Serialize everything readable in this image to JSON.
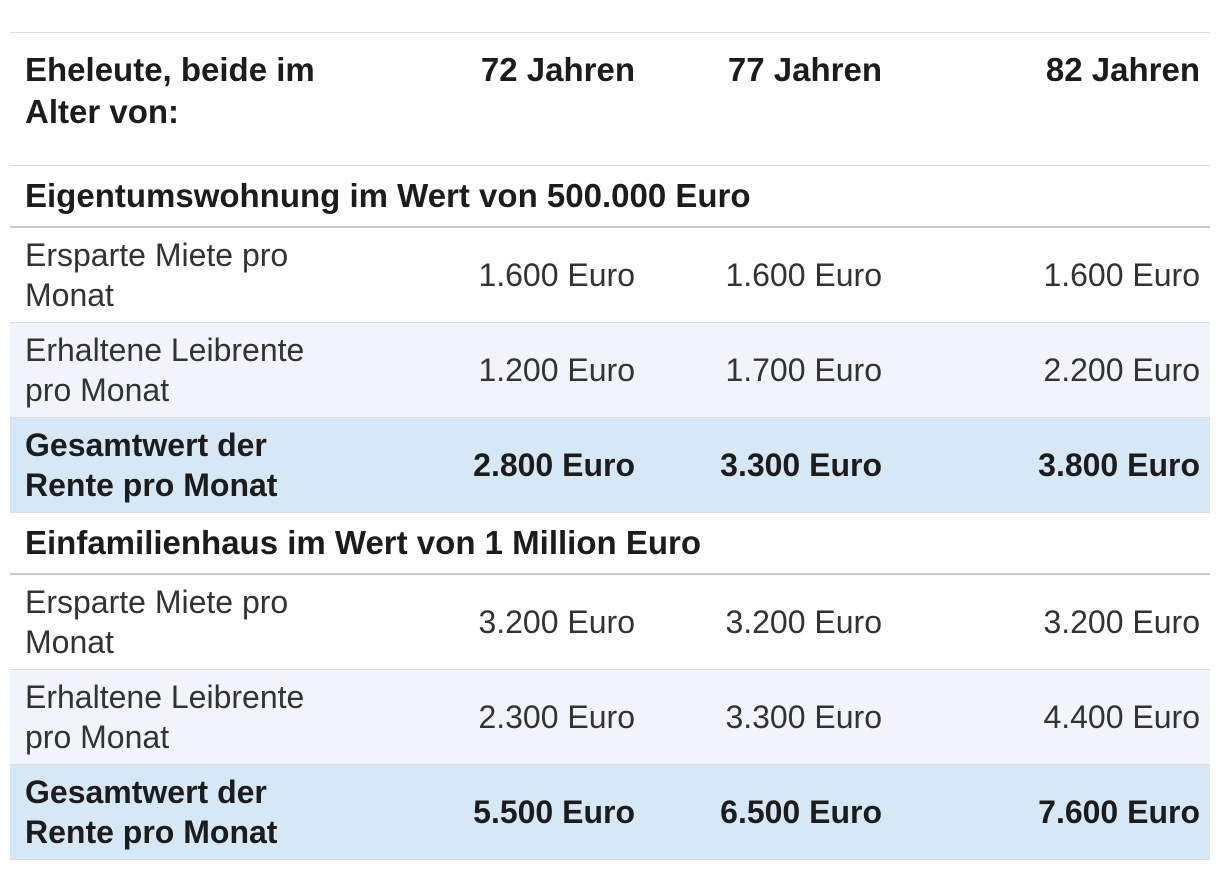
{
  "table": {
    "header": {
      "row_label": "Eheleute, beide im Alter von:",
      "age_columns": [
        "72 Jahren",
        "77 Jahren",
        "82 Jahren"
      ]
    },
    "sections": [
      {
        "title": "Eigentumswohnung im Wert von 500.000 Euro",
        "rows": [
          {
            "label": "Ersparte Miete pro Monat",
            "values": [
              "1.600 Euro",
              "1.600 Euro",
              "1.600 Euro"
            ],
            "variant": "plain"
          },
          {
            "label": "Erhaltene Leibrente pro Monat",
            "values": [
              "1.200 Euro",
              "1.700 Euro",
              "2.200 Euro"
            ],
            "variant": "tinted"
          },
          {
            "label": "Gesamtwert der Rente pro Monat",
            "values": [
              "2.800 Euro",
              "3.300 Euro",
              "3.800 Euro"
            ],
            "variant": "total"
          }
        ]
      },
      {
        "title": "Einfamilienhaus im Wert von 1 Million Euro",
        "rows": [
          {
            "label": "Ersparte Miete pro Monat",
            "values": [
              "3.200 Euro",
              "3.200 Euro",
              "3.200 Euro"
            ],
            "variant": "plain"
          },
          {
            "label": "Erhaltene Leibrente pro Monat",
            "values": [
              "2.300 Euro",
              "3.300 Euro",
              "4.400 Euro"
            ],
            "variant": "tinted"
          },
          {
            "label": "Gesamtwert der Rente pro Monat",
            "values": [
              "5.500 Euro",
              "6.500 Euro",
              "7.600 Euro"
            ],
            "variant": "total"
          }
        ]
      }
    ]
  },
  "colors": {
    "total_row_bg": "#d6e7f6",
    "tinted_row_bg": "#f1f5fb",
    "row_border": "#dcdcdc",
    "section_border": "#c9c9c9",
    "heading_text": "#1c1c1c",
    "body_text": "#333333",
    "page_bg": "#ffffff"
  },
  "chart_data": {
    "type": "table",
    "columns": [
      "Eheleute, beide im Alter von:",
      "72 Jahren",
      "77 Jahren",
      "82 Jahren"
    ],
    "unit": "Euro pro Monat",
    "sections": [
      {
        "title": "Eigentumswohnung im Wert von 500.000 Euro",
        "rows": [
          {
            "label": "Ersparte Miete pro Monat",
            "values_euro": [
              1600,
              1600,
              1600
            ]
          },
          {
            "label": "Erhaltene Leibrente pro Monat",
            "values_euro": [
              1200,
              1700,
              2200
            ]
          },
          {
            "label": "Gesamtwert der Rente pro Monat",
            "values_euro": [
              2800,
              3300,
              3800
            ]
          }
        ]
      },
      {
        "title": "Einfamilienhaus im Wert von 1 Million Euro",
        "rows": [
          {
            "label": "Ersparte Miete pro Monat",
            "values_euro": [
              3200,
              3200,
              3200
            ]
          },
          {
            "label": "Erhaltene Leibrente pro Monat",
            "values_euro": [
              2300,
              3300,
              4400
            ]
          },
          {
            "label": "Gesamtwert der Rente pro Monat",
            "values_euro": [
              5500,
              6500,
              7600
            ]
          }
        ]
      }
    ]
  }
}
